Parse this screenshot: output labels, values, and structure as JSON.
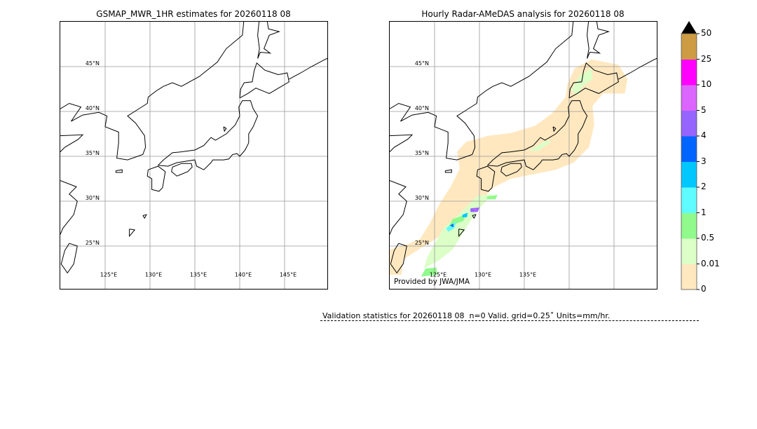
{
  "left_panel": {
    "title": "GSMAP_MWR_1HR estimates for 20260118 08",
    "lat_labels": [
      "45°N",
      "40°N",
      "35°N",
      "30°N",
      "25°N"
    ],
    "lon_labels": [
      "125°E",
      "130°E",
      "135°E",
      "140°E",
      "145°E"
    ]
  },
  "right_panel": {
    "title": "Hourly Radar-AMeDAS analysis for 20260118 08",
    "lat_labels": [
      "45°N",
      "40°N",
      "35°N",
      "30°N",
      "25°N"
    ],
    "lon_labels": [
      "125°E",
      "130°E",
      "135°E"
    ],
    "credit": "Provided by JWA/JMA"
  },
  "colorbar": {
    "ticks": [
      "0",
      "0.01",
      "0.5",
      "1",
      "2",
      "3",
      "4",
      "5",
      "10",
      "25",
      "50"
    ],
    "colors": [
      "#ffe8c0",
      "#dcffc8",
      "#90fa8c",
      "#5ffcff",
      "#00c8ff",
      "#0064ff",
      "#9664ff",
      "#dc64ff",
      "#ff00ff",
      "#cd9b41"
    ],
    "extend": "max",
    "overflow_color": "#000000"
  },
  "validation": {
    "text": "Validation statistics for 20260118 08  n=0 Valid. grid=0.25˚ Units=mm/hr."
  }
}
